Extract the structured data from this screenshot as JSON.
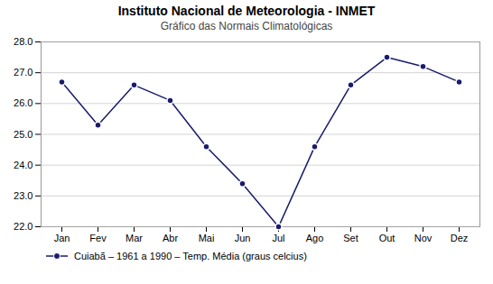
{
  "chart_data": {
    "type": "line",
    "title": "Instituto Nacional de Meteorologia - INMET",
    "subtitle": "Gráfico das Normais Climatológicas",
    "categories": [
      "Jan",
      "Fev",
      "Mar",
      "Abr",
      "Mai",
      "Jun",
      "Jul",
      "Ago",
      "Set",
      "Out",
      "Nov",
      "Dez"
    ],
    "series": [
      {
        "name": "Cuiabã – 1961 a 1990 – Temp. Média (graus celcius)",
        "color": "#1a1a6e",
        "values": [
          26.7,
          25.3,
          26.6,
          26.1,
          24.6,
          23.4,
          22.0,
          24.6,
          26.6,
          27.5,
          27.2,
          26.7
        ]
      }
    ],
    "ylim": [
      22.0,
      28.0
    ],
    "yticks": [
      {
        "value": 22.0,
        "label": "22.0"
      },
      {
        "value": 23.0,
        "label": "23.0"
      },
      {
        "value": 24.0,
        "label": "24.0"
      },
      {
        "value": 25.0,
        "label": "25.0"
      },
      {
        "value": 26.0,
        "label": "26.0"
      },
      {
        "value": 27.0,
        "label": "27.0"
      },
      {
        "value": 28.0,
        "label": "28.0"
      }
    ],
    "grid": true,
    "marker": "circle",
    "legend": "bottom"
  }
}
